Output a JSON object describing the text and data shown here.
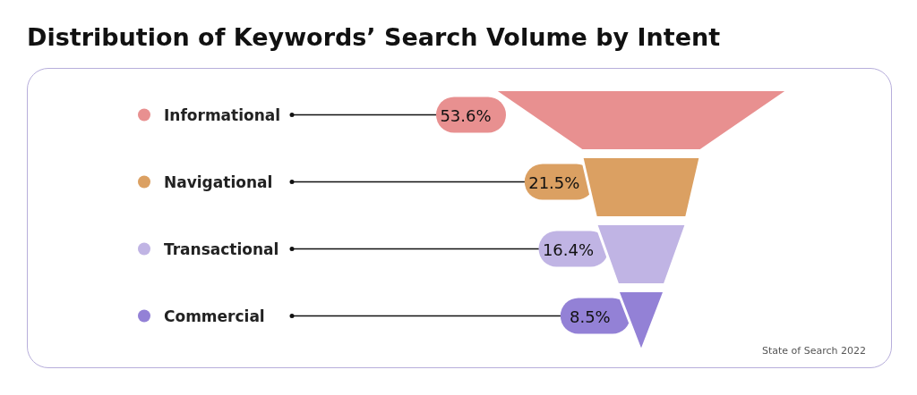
{
  "chart_data": {
    "type": "other",
    "title": "Distribution of Keywords’ Search Volume by Intent",
    "categories": [
      "Informational",
      "Navigational",
      "Transactional",
      "Commercial"
    ],
    "values": [
      53.6,
      21.5,
      16.4,
      8.5
    ],
    "value_labels": [
      "53.6%",
      "21.5%",
      "16.4%",
      "8.5%"
    ],
    "colors": [
      "#e89090",
      "#dba062",
      "#c0b4e4",
      "#9381d6"
    ],
    "annotations": [
      "State of Search 2022"
    ]
  }
}
